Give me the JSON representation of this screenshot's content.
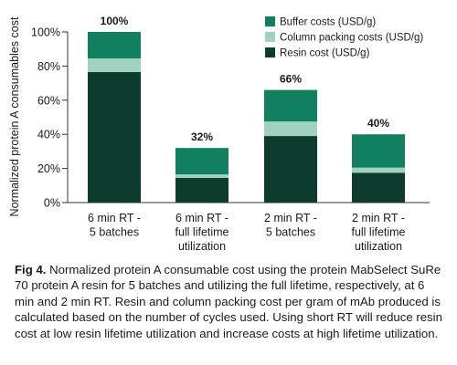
{
  "chart_data": {
    "type": "bar",
    "stacked": true,
    "ylabel": "Normalized protein A consumables cost",
    "ylim": [
      0,
      100
    ],
    "yticks": [
      "0%",
      "20%",
      "40%",
      "60%",
      "80%",
      "100%"
    ],
    "categories": [
      [
        "6 min RT -",
        "5 batches"
      ],
      [
        "6 min RT -",
        "full lifetime",
        "utilization"
      ],
      [
        "2 min RT -",
        "5 batches"
      ],
      [
        "2 min RT -",
        "full lifetime",
        "utilization"
      ]
    ],
    "totals": [
      "100%",
      "32%",
      "66%",
      "40%"
    ],
    "legend_position": "top-right",
    "series": [
      {
        "name": "Resin cost (USD/g)",
        "color": "#0d3b2e",
        "values": [
          76.5,
          14.5,
          39,
          17.5
        ]
      },
      {
        "name": "Column packing costs (USD/g)",
        "color": "#9fd3c0",
        "values": [
          8,
          2,
          8.5,
          3
        ]
      },
      {
        "name": "Buffer costs (USD/g)",
        "color": "#118060",
        "values": [
          15.5,
          15.5,
          18.5,
          19.5
        ]
      }
    ],
    "legend_order": [
      2,
      1,
      0
    ]
  },
  "caption": {
    "label": "Fig 4.",
    "text": "Normalized protein A consumable cost using the protein MabSelect SuRe 70 protein A resin for 5 batches and utilizing the full lifetime, respectively, at 6 min and 2 min RT. Resin and column packing cost per gram of mAb produced is calculated based on the number of cycles used. Using short RT will reduce resin cost at low resin lifetime utilization and increase costs at high lifetime utilization."
  }
}
